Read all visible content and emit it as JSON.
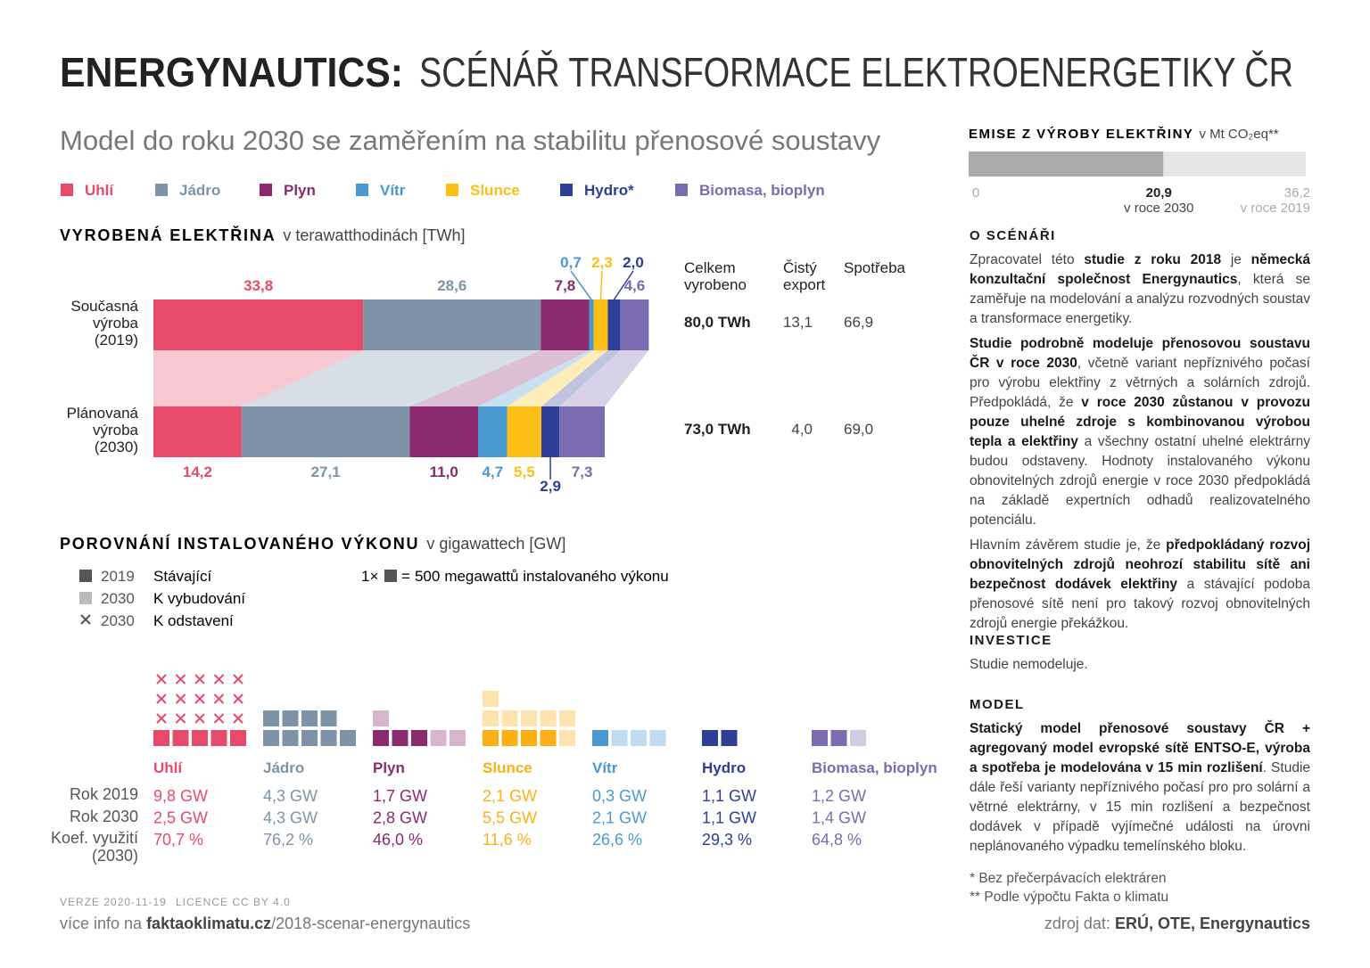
{
  "header": {
    "title_bold": "ENERGYNAUTICS:",
    "title": "SCÉNÁŘ TRANSFORMACE ELEKTROENERGETIKY ČR",
    "subtitle": "Model do roku 2030 se zaměřením na stabilitu přenosové soustavy"
  },
  "chart_data": [
    {
      "type": "stacked-bar",
      "title": "VYROBENÁ ELEKTŘINA",
      "unit": "v terawatthodinách [TWh]",
      "categories": [
        "Současná výroba (2019)",
        "Plánovaná výroba (2030)"
      ],
      "series": [
        {
          "name": "Uhlí",
          "color": "#e84a6a",
          "values": [
            33.8,
            14.2
          ],
          "value_labels": [
            "33,8",
            "14,2"
          ]
        },
        {
          "name": "Jádro",
          "color": "#7f93a8",
          "values": [
            28.6,
            27.1
          ],
          "value_labels": [
            "28,6",
            "27,1"
          ]
        },
        {
          "name": "Plyn",
          "color": "#8b2a6e",
          "values": [
            7.8,
            11.0
          ],
          "value_labels": [
            "7,8",
            "11,0"
          ]
        },
        {
          "name": "Vítr",
          "color": "#4a98d0",
          "values": [
            0.7,
            4.7
          ],
          "value_labels": [
            "0,7",
            "4,7"
          ]
        },
        {
          "name": "Slunce",
          "color": "#fbbf16",
          "values": [
            2.3,
            5.5
          ],
          "value_labels": [
            "2,3",
            "5,5"
          ]
        },
        {
          "name": "Hydro*",
          "color": "#2d3e96",
          "values": [
            2.0,
            2.9
          ],
          "value_labels": [
            "2,0",
            "2,9"
          ]
        },
        {
          "name": "Biomasa, bioplyn",
          "color": "#7b6bb0",
          "values": [
            4.6,
            7.3
          ],
          "value_labels": [
            "4,6",
            "7,3"
          ]
        }
      ],
      "summary": {
        "columns": [
          "Celkem vyrobeno",
          "Čistý export",
          "Spotřeba"
        ],
        "rows": [
          [
            "80,0 TWh",
            "13,1",
            "66,9"
          ],
          [
            "73,0 TWh",
            "4,0",
            "69,0"
          ]
        ]
      }
    },
    {
      "type": "waffle",
      "title": "POROVNÁNÍ INSTALOVANÉHO VÝKONU",
      "unit": "v gigawattech [GW]",
      "legend": [
        {
          "year": "2019",
          "label": "Stávající"
        },
        {
          "year": "2030",
          "label": "K vybudování"
        },
        {
          "year": "2030",
          "label": "K odstavení"
        }
      ],
      "scale_prefix": "1×",
      "scale_equals": "=",
      "scale_value": 500,
      "scale_unit": "megawattů instalovaného výkonu",
      "categories": [
        "Uhlí",
        "Jádro",
        "Plyn",
        "Slunce",
        "Vítr",
        "Hydro",
        "Biomasa, bioplyn"
      ],
      "colors": [
        "#e84a6a",
        "#7f93a8",
        "#8b2a6e",
        "#fbb016",
        "#4a98d0",
        "#2d3e96",
        "#7b6bb0"
      ],
      "series": [
        {
          "name": "Rok 2019",
          "values": [
            9.8,
            4.3,
            1.7,
            2.1,
            0.3,
            1.1,
            1.2
          ],
          "value_labels": [
            "9,8 GW",
            "4,3 GW",
            "1,7 GW",
            "2,1 GW",
            "0,3 GW",
            "1,1 GW",
            "1,2 GW"
          ]
        },
        {
          "name": "Rok 2030",
          "values": [
            2.5,
            4.3,
            2.8,
            5.5,
            2.1,
            1.1,
            1.4
          ],
          "value_labels": [
            "2,5 GW",
            "4,3 GW",
            "2,8 GW",
            "5,5 GW",
            "2,1 GW",
            "1,1 GW",
            "1,4 GW"
          ]
        },
        {
          "name": "Koef. využití (2030)",
          "values": [
            70.7,
            76.2,
            46.0,
            11.6,
            26.6,
            29.3,
            64.8
          ],
          "value_labels": [
            "70,7 %",
            "76,2 %",
            "46,0 %",
            "11,6 %",
            "26,6 %",
            "29,3 %",
            "64,8 %"
          ]
        }
      ]
    },
    {
      "type": "bar",
      "title": "EMISE Z VÝROBY ELEKTŘINY",
      "unit": "v Mt CO₂eq**",
      "categories": [
        "v roce 2030",
        "v roce 2019"
      ],
      "values": [
        20.9,
        36.2
      ],
      "value_labels": [
        "20,9",
        "36,2"
      ],
      "colors": [
        "#aaaaaa",
        "#e6e6e6"
      ],
      "xlim": [
        0,
        36.2
      ],
      "xticks": [
        0
      ]
    }
  ],
  "about": {
    "title": "O SCÉNÁŘI",
    "paragraphs": [
      [
        {
          "text": "Zpracovatel této "
        },
        {
          "text": "studie z roku 2018",
          "bold": true
        },
        {
          "text": " je "
        },
        {
          "text": "německá konzultační společnost Energynautics",
          "bold": true
        },
        {
          "text": ", která se zaměřuje na modelování a analýzu rozvodných soustav a transformace energetiky."
        }
      ],
      [
        {
          "text": "Studie podrobně modeluje přenosovou soustavu ČR v roce 2030",
          "bold": true
        },
        {
          "text": ", včetně variant nepříznivého počasí pro výrobu elektřiny z větrných a solárních zdrojů. Předpokládá, že "
        },
        {
          "text": "v roce 2030 zůstanou v provozu pouze uhelné zdroje s kombinovanou výrobou tepla a elektřiny",
          "bold": true
        },
        {
          "text": " a všechny ostatní uhelné elektrárny budou odstaveny. Hodnoty instalovaného výkonu obnovitelných zdrojů energie v roce 2030 předpokládá na základě expertních odhadů realizovatelného potenciálu."
        }
      ],
      [
        {
          "text": "Hlavním závěrem studie je, že "
        },
        {
          "text": "předpokládaný rozvoj obnovitelných zdrojů neohrozí stabilitu sítě ani bezpečnost dodávek elektřiny",
          "bold": true
        },
        {
          "text": " a stávající podoba přenosové sítě není pro takový rozvoj obnovitelných zdrojů energie překážkou."
        }
      ]
    ]
  },
  "investment": {
    "title": "INVESTICE",
    "text": "Studie nemodeluje."
  },
  "model": {
    "title": "MODEL",
    "paragraphs": [
      [
        {
          "text": "Statický model přenosové soustavy ČR + agregovaný model evropské sítě ENTSO-E, výroba a spotřeba je modelována v 15 min rozlišení",
          "bold": true
        },
        {
          "text": ". Studie dále řeší varianty nepříznivého počasí pro pro solární a větrné elektrárny, v 15 min rozlišení a bezpečnost dodávek v případě vyjímečné události na úrovni neplánovaného výpadku temelínského bloku."
        }
      ]
    ]
  },
  "footnotes": [
    "* Bez přečerpávacích elektráren",
    "** Podle výpočtu Fakta o klimatu"
  ],
  "footer": {
    "version": "VERZE 2020-11-19",
    "license": "LICENCE CC BY 4.0",
    "more_prefix": "více info na",
    "more_domain": "faktaoklimatu.cz",
    "more_path": "/2018-scenar-energynautics",
    "source_prefix": "zdroj dat:",
    "source": "ERÚ, OTE, Energynautics"
  }
}
